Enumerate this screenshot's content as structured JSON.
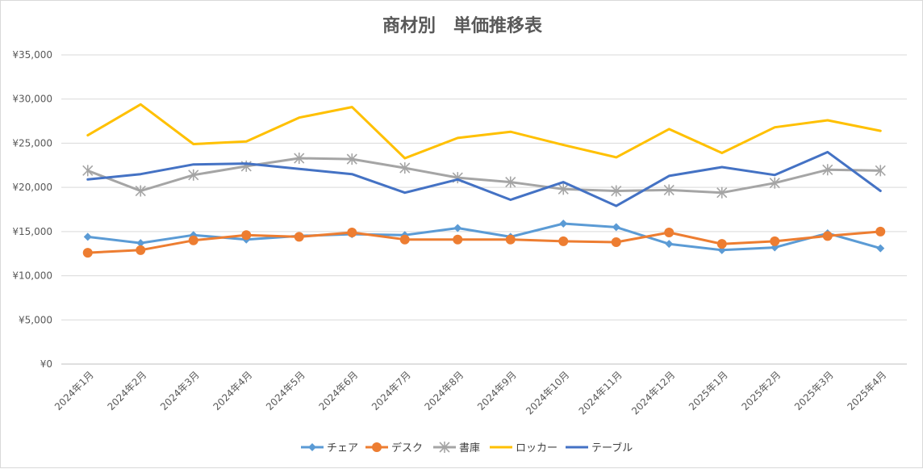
{
  "chart_data": {
    "type": "line",
    "title": "商材別　単価推移表",
    "categories": [
      "2024年1月",
      "2024年2月",
      "2024年3月",
      "2024年4月",
      "2024年5月",
      "2024年6月",
      "2024年7月",
      "2024年8月",
      "2024年9月",
      "2024年10月",
      "2024年11月",
      "2024年12月",
      "2025年1月",
      "2025年2月",
      "2025年3月",
      "2025年4月"
    ],
    "y_ticks": [
      "¥0",
      "¥5,000",
      "¥10,000",
      "¥15,000",
      "¥20,000",
      "¥25,000",
      "¥30,000",
      "¥35,000"
    ],
    "ylim": [
      0,
      35000
    ],
    "grid": true,
    "legend_position": "bottom",
    "series": [
      {
        "name": "チェア",
        "color": "#5B9BD5",
        "marker": "diamond",
        "values": [
          14400,
          13700,
          14600,
          14100,
          14500,
          14700,
          14600,
          15400,
          14400,
          15900,
          15500,
          13600,
          12900,
          13200,
          14800,
          13100
        ]
      },
      {
        "name": "デスク",
        "color": "#ED7D31",
        "marker": "circle",
        "values": [
          12600,
          12900,
          14000,
          14600,
          14400,
          14900,
          14100,
          14100,
          14100,
          13900,
          13800,
          14900,
          13600,
          13900,
          14500,
          15000
        ]
      },
      {
        "name": "書庫",
        "color": "#A5A5A5",
        "marker": "star",
        "values": [
          21900,
          19600,
          21400,
          22400,
          23300,
          23200,
          22200,
          21100,
          20600,
          19800,
          19600,
          19700,
          19400,
          20500,
          22000,
          21900
        ]
      },
      {
        "name": "ロッカー",
        "color": "#FFC000",
        "marker": "none",
        "values": [
          25900,
          29400,
          24900,
          25200,
          27900,
          29100,
          23300,
          25600,
          26300,
          24800,
          23400,
          26600,
          23900,
          26800,
          27600,
          26400
        ]
      },
      {
        "name": "テーブル",
        "color": "#4472C4",
        "marker": "none",
        "values": [
          20900,
          21500,
          22600,
          22700,
          22100,
          21500,
          19400,
          20900,
          18600,
          20600,
          17900,
          21300,
          22300,
          21400,
          24000,
          19600
        ]
      }
    ]
  }
}
